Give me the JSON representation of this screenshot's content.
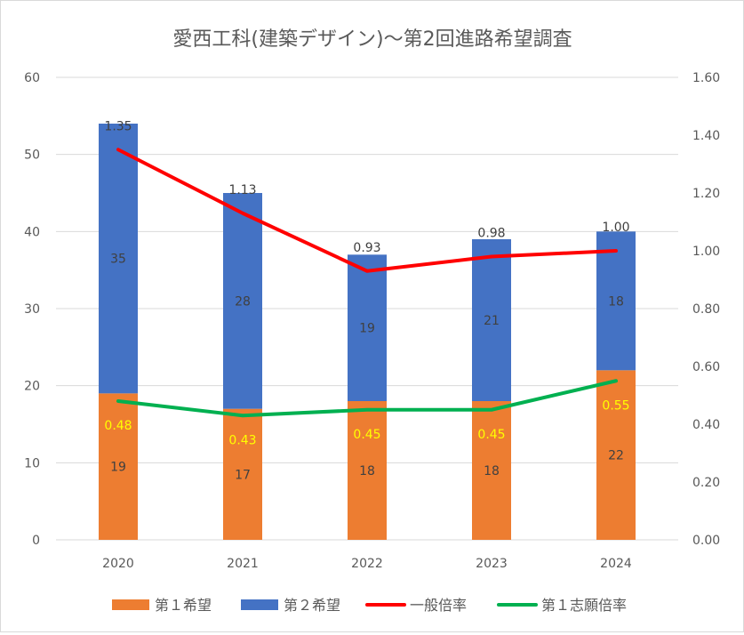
{
  "chart_data": {
    "type": "bar",
    "title": "愛西工科(建築デザイン)～第2回進路希望調査",
    "categories": [
      "2020",
      "2021",
      "2022",
      "2023",
      "2024"
    ],
    "series": [
      {
        "name": "第１希望",
        "kind": "bar",
        "axis": "left",
        "color": "#ed7d31",
        "values": [
          19,
          17,
          18,
          18,
          22
        ]
      },
      {
        "name": "第２希望",
        "kind": "bar",
        "axis": "left",
        "color": "#4472c4",
        "values": [
          35,
          28,
          19,
          21,
          18
        ]
      },
      {
        "name": "一般倍率",
        "kind": "line",
        "axis": "right",
        "color": "#ff0000",
        "values": [
          1.35,
          1.13,
          0.93,
          0.98,
          1.0
        ],
        "labels": [
          "1.35",
          "1.13",
          "0.93",
          "0.98",
          "1.00"
        ]
      },
      {
        "name": "第１志願倍率",
        "kind": "line",
        "axis": "right",
        "color": "#00b050",
        "values": [
          0.48,
          0.43,
          0.45,
          0.45,
          0.55
        ],
        "labels": [
          "0.48",
          "0.43",
          "0.45",
          "0.45",
          "0.55"
        ]
      }
    ],
    "stacked": true,
    "y_left": {
      "min": 0,
      "max": 60,
      "ticks": [
        "0",
        "10",
        "20",
        "30",
        "40",
        "50",
        "60"
      ]
    },
    "y_right": {
      "min": 0,
      "max": 1.6,
      "ticks": [
        "0.00",
        "0.20",
        "0.40",
        "0.60",
        "0.80",
        "1.00",
        "1.20",
        "1.40",
        "1.60"
      ]
    },
    "grid": true,
    "legend_position": "bottom"
  }
}
